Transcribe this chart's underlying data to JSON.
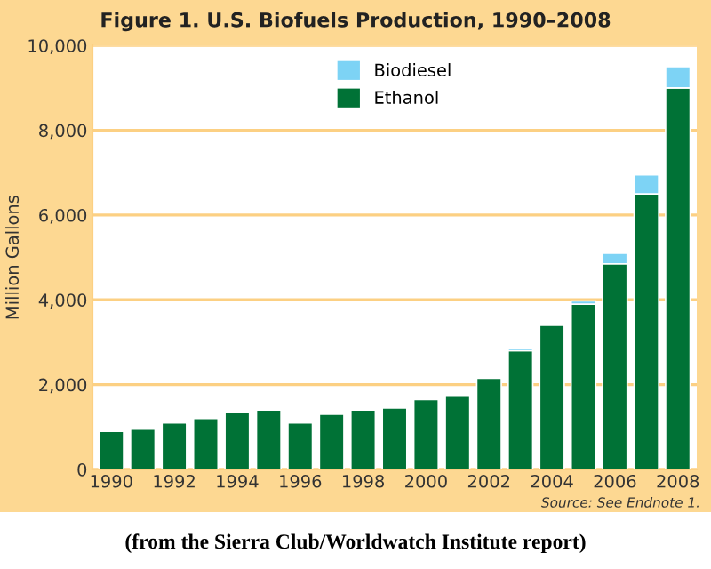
{
  "chart_data": {
    "type": "bar",
    "title": "Figure 1. U.S. Biofuels Production, 1990–2008",
    "ylabel": "Million Gallons",
    "categories": [
      "1990",
      null,
      "1992",
      null,
      "1994",
      null,
      "1996",
      null,
      "1998",
      null,
      "2000",
      null,
      "2002",
      null,
      "2004",
      null,
      "2006",
      null,
      "2008"
    ],
    "series": [
      {
        "name": "Ethanol",
        "color": "#007236",
        "values": [
          900,
          950,
          1100,
          1200,
          1350,
          1400,
          1100,
          1300,
          1400,
          1450,
          1650,
          1750,
          2150,
          2800,
          3400,
          3900,
          4850,
          6500,
          9000
        ]
      },
      {
        "name": "Biodiesel",
        "color": "#7dd3f5",
        "values": [
          null,
          null,
          null,
          null,
          null,
          null,
          null,
          null,
          null,
          null,
          null,
          null,
          null,
          50,
          null,
          75,
          250,
          450,
          500
        ]
      }
    ],
    "stacked": true,
    "ylim": [
      0,
      10000
    ],
    "yticks": [
      {
        "value": 0,
        "label": "0"
      },
      {
        "value": 2000,
        "label": "2,000"
      },
      {
        "value": 4000,
        "label": "4,000"
      },
      {
        "value": 6000,
        "label": "6,000"
      },
      {
        "value": 8000,
        "label": "8,000"
      },
      {
        "value": 10000,
        "label": "10,000"
      }
    ],
    "grid": "y",
    "legend": "top",
    "annotations": [
      "Source: See Endnote 1.",
      "(from the Sierra Club/Worldwatch Institute report)"
    ]
  }
}
